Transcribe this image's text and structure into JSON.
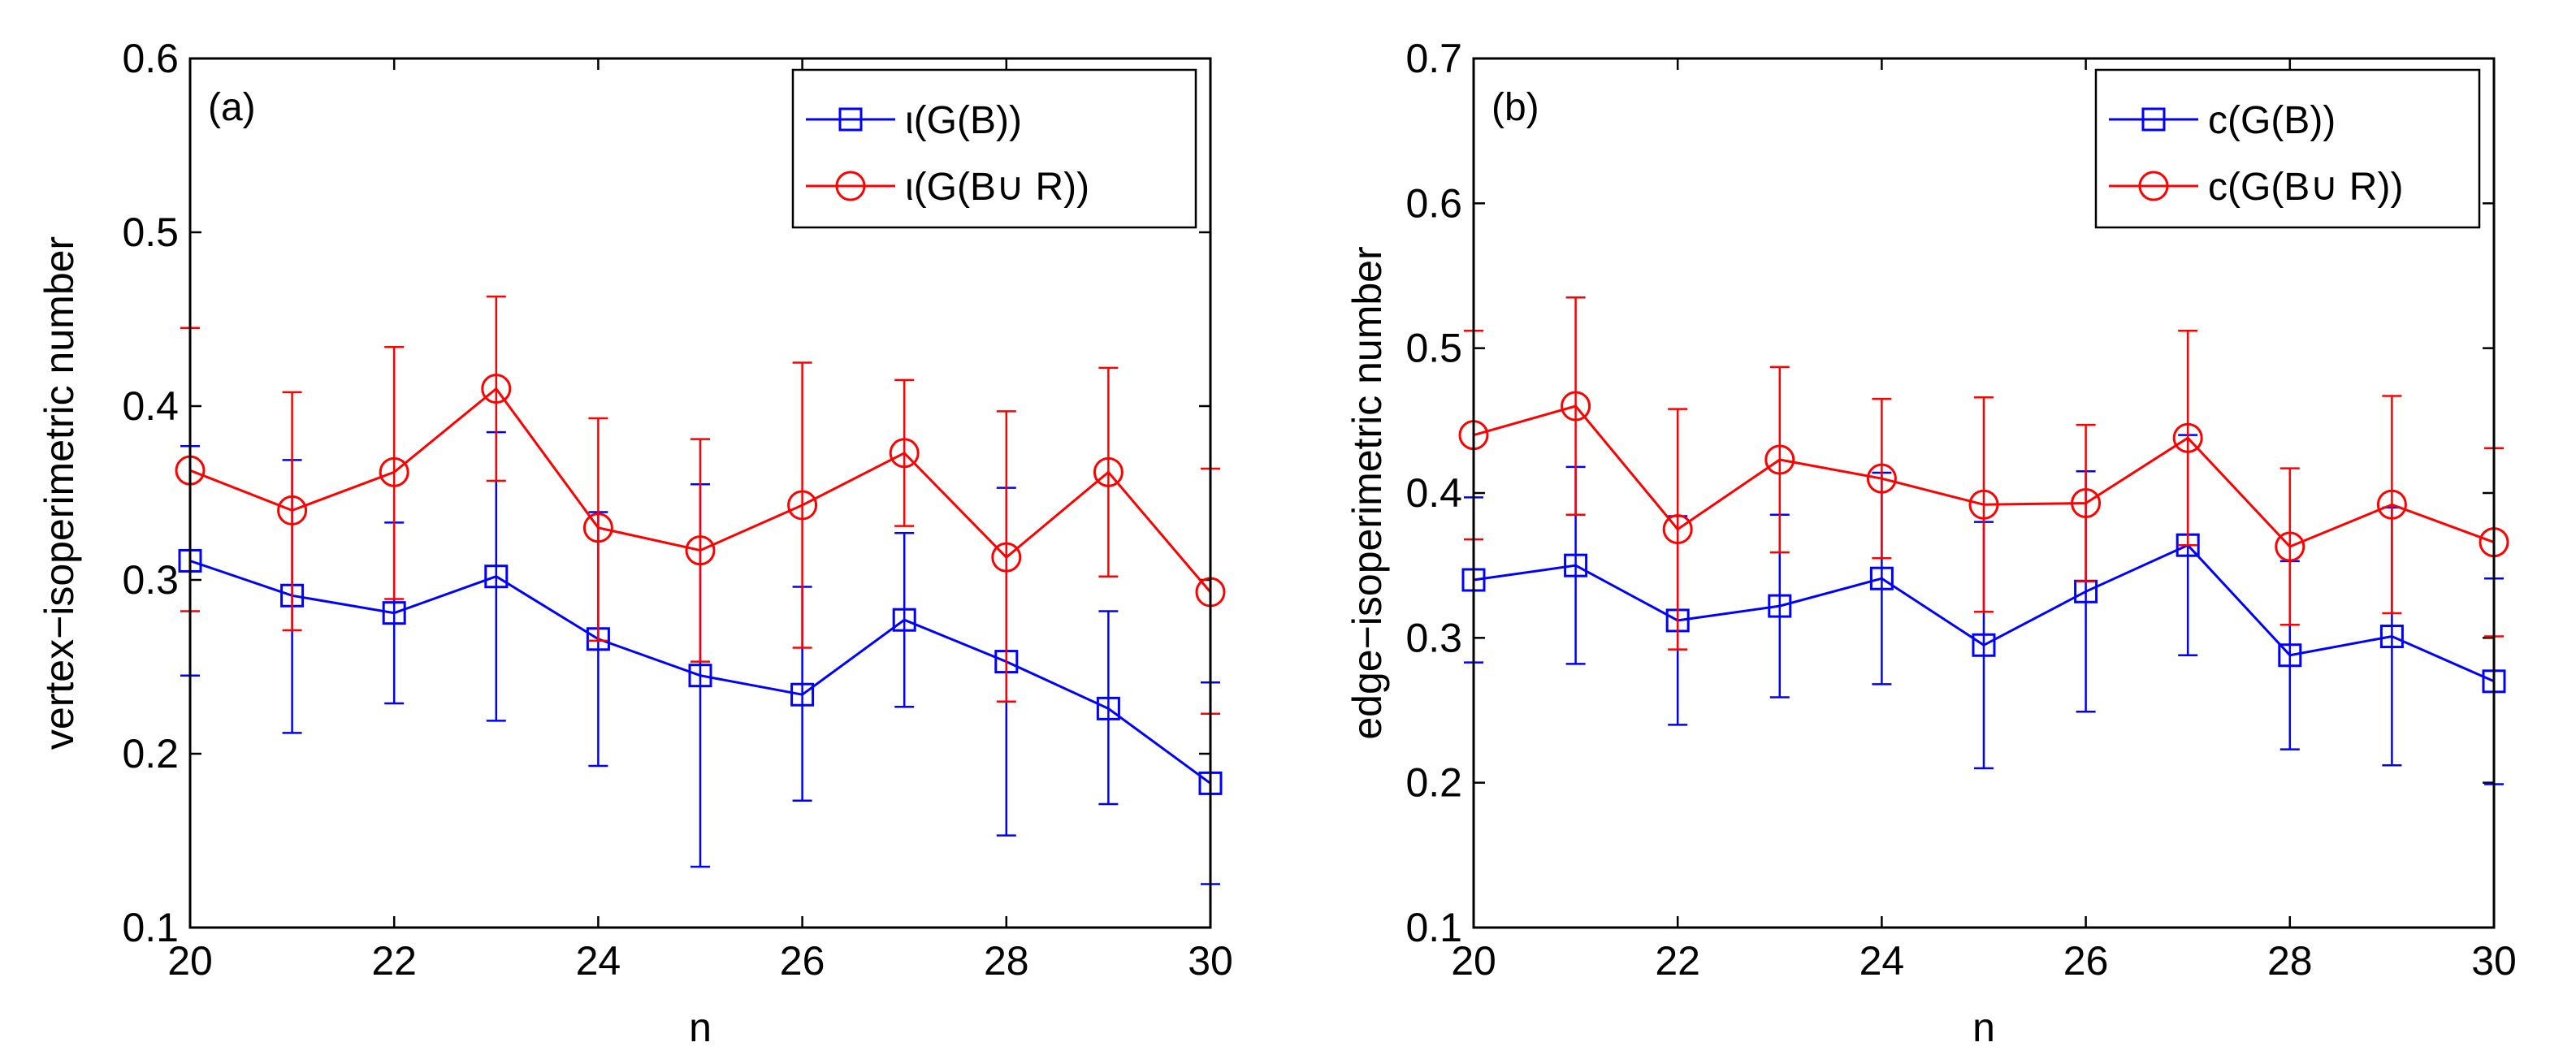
{
  "chart_data": [
    {
      "type": "line",
      "panel_label": "(a)",
      "xlabel": "n",
      "ylabel": "vertex−isoperimetric number",
      "xlim": [
        20,
        30
      ],
      "ylim": [
        0.1,
        0.6
      ],
      "xticks": [
        20,
        22,
        24,
        26,
        28,
        30
      ],
      "yticks": [
        0.1,
        0.2,
        0.3,
        0.4,
        0.5,
        0.6
      ],
      "legend_position": "top-right",
      "x": [
        20,
        21,
        22,
        23,
        24,
        25,
        26,
        27,
        28,
        29,
        30
      ],
      "series": [
        {
          "name": "ι(G(B))",
          "color": "#0000ff",
          "marker": "square",
          "values": [
            0.311,
            0.291,
            0.281,
            0.302,
            0.266,
            0.245,
            0.234,
            0.277,
            0.253,
            0.226,
            0.183
          ],
          "err_low": [
            0.245,
            0.212,
            0.229,
            0.219,
            0.193,
            0.135,
            0.173,
            0.227,
            0.153,
            0.171,
            0.125
          ],
          "err_high": [
            0.377,
            0.369,
            0.333,
            0.385,
            0.339,
            0.355,
            0.296,
            0.327,
            0.353,
            0.282,
            0.241
          ]
        },
        {
          "name": "ι(G(B∪ R))",
          "color": "#ff0000",
          "marker": "circle",
          "values": [
            0.363,
            0.34,
            0.362,
            0.41,
            0.33,
            0.317,
            0.343,
            0.373,
            0.313,
            0.362,
            0.293
          ],
          "err_low": [
            0.282,
            0.271,
            0.289,
            0.357,
            0.265,
            0.253,
            0.261,
            0.331,
            0.23,
            0.302,
            0.223
          ],
          "err_high": [
            0.445,
            0.408,
            0.434,
            0.463,
            0.393,
            0.381,
            0.425,
            0.415,
            0.397,
            0.422,
            0.364
          ]
        }
      ]
    },
    {
      "type": "line",
      "panel_label": "(b)",
      "xlabel": "n",
      "ylabel": "edge−isoperimetric number",
      "xlim": [
        20,
        30
      ],
      "ylim": [
        0.1,
        0.7
      ],
      "xticks": [
        20,
        22,
        24,
        26,
        28,
        30
      ],
      "yticks": [
        0.1,
        0.2,
        0.3,
        0.4,
        0.5,
        0.6,
        0.7
      ],
      "legend_position": "top-right",
      "x": [
        20,
        21,
        22,
        23,
        24,
        25,
        26,
        27,
        28,
        29,
        30
      ],
      "series": [
        {
          "name": "c(G(B))",
          "color": "#0000ff",
          "marker": "square",
          "values": [
            0.34,
            0.35,
            0.312,
            0.322,
            0.341,
            0.295,
            0.332,
            0.364,
            0.288,
            0.301,
            0.27
          ],
          "err_low": [
            0.283,
            0.282,
            0.24,
            0.259,
            0.268,
            0.21,
            0.249,
            0.288,
            0.223,
            0.212,
            0.199
          ],
          "err_high": [
            0.397,
            0.418,
            0.384,
            0.385,
            0.414,
            0.38,
            0.415,
            0.44,
            0.353,
            0.39,
            0.341
          ]
        },
        {
          "name": "c(G(B∪ R))",
          "color": "#ff0000",
          "marker": "circle",
          "values": [
            0.44,
            0.46,
            0.375,
            0.423,
            0.41,
            0.392,
            0.393,
            0.438,
            0.363,
            0.392,
            0.366
          ],
          "err_low": [
            0.368,
            0.385,
            0.292,
            0.359,
            0.355,
            0.318,
            0.339,
            0.364,
            0.309,
            0.317,
            0.301
          ],
          "err_high": [
            0.512,
            0.535,
            0.458,
            0.487,
            0.465,
            0.466,
            0.447,
            0.512,
            0.417,
            0.467,
            0.431
          ]
        }
      ]
    }
  ]
}
